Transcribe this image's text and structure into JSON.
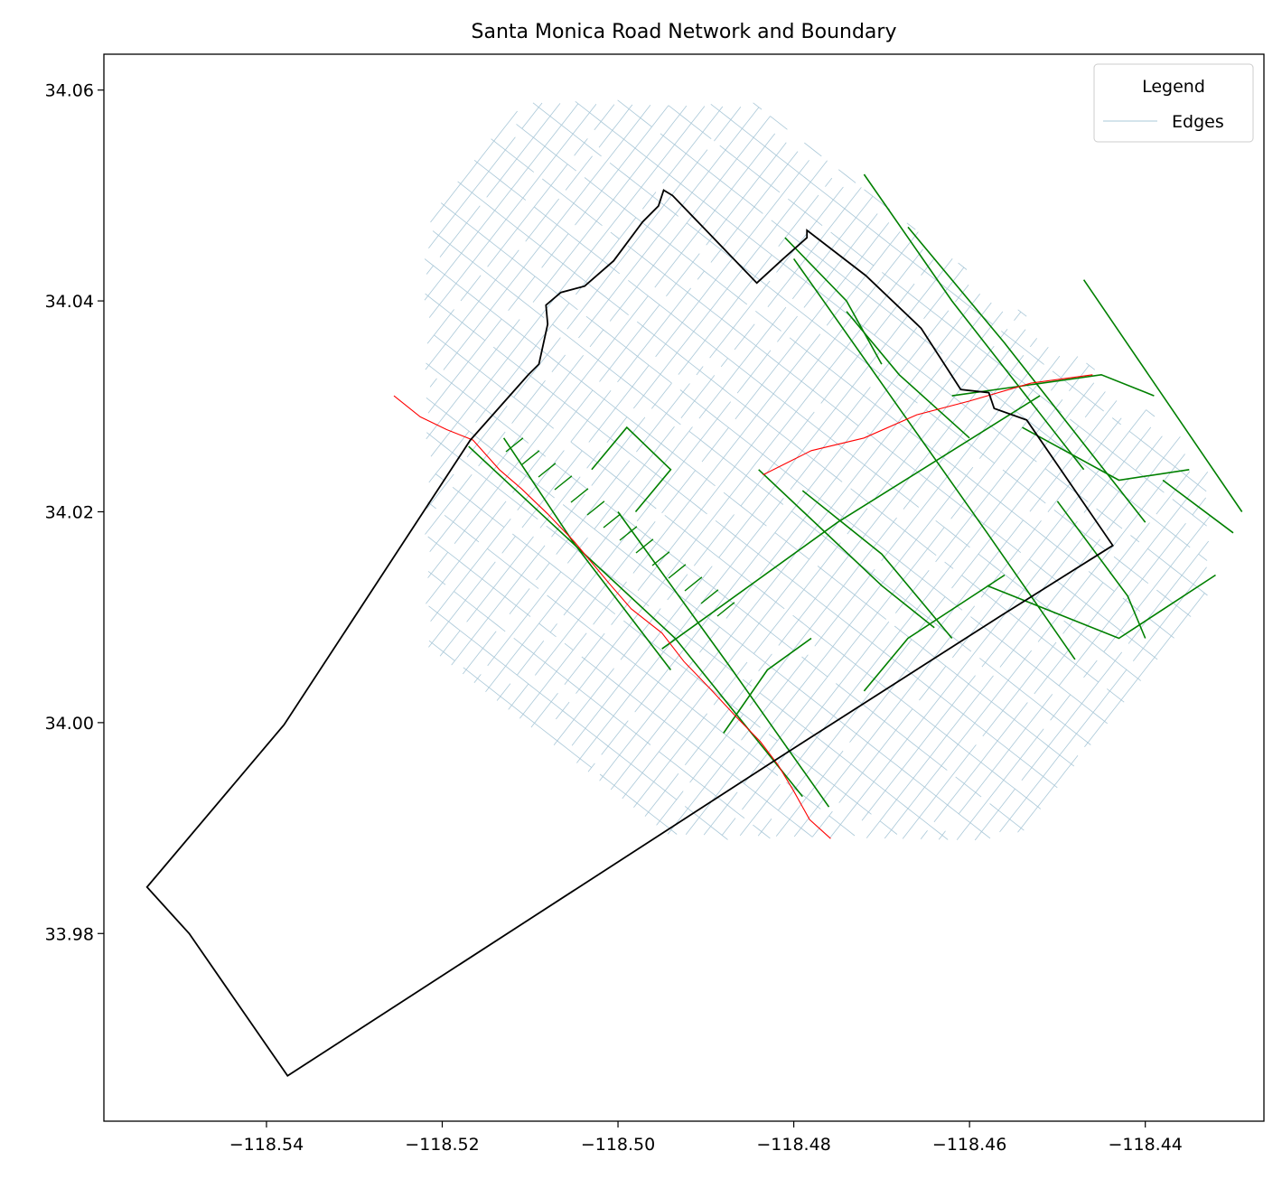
{
  "chart_data": {
    "type": "map",
    "title": "Santa Monica Road Network and Boundary",
    "xlabel": "",
    "ylabel": "",
    "xlim": [
      -118.5585,
      -118.4265
    ],
    "ylim": [
      33.9622,
      34.0634
    ],
    "x_ticks": [
      {
        "value": -118.54,
        "label": "−118.54"
      },
      {
        "value": -118.52,
        "label": "−118.52"
      },
      {
        "value": -118.5,
        "label": "−118.50"
      },
      {
        "value": -118.48,
        "label": "−118.48"
      },
      {
        "value": -118.46,
        "label": "−118.46"
      },
      {
        "value": -118.44,
        "label": "−118.44"
      }
    ],
    "y_ticks": [
      {
        "value": 33.98,
        "label": "33.98"
      },
      {
        "value": 34.0,
        "label": "34.00"
      },
      {
        "value": 34.02,
        "label": "34.02"
      },
      {
        "value": 34.04,
        "label": "34.04"
      },
      {
        "value": 34.06,
        "label": "34.06"
      }
    ],
    "grid": false,
    "legend": {
      "title": "Legend",
      "placement": "top-right",
      "entries": [
        {
          "label": "Edges",
          "color": "#aac8d8"
        }
      ]
    },
    "colors": {
      "edges": "#aac8d8",
      "bike_routes": "#008000",
      "coastal_path": "#ff0000",
      "boundary": "#000000"
    },
    "boundary": [
      [
        -118.5168,
        34.0268
      ],
      [
        -118.5102,
        34.033
      ],
      [
        -118.509,
        34.034
      ],
      [
        -118.508,
        34.0378
      ],
      [
        -118.5082,
        34.0396
      ],
      [
        -118.5065,
        34.0408
      ],
      [
        -118.5038,
        34.0414
      ],
      [
        -118.5005,
        34.0438
      ],
      [
        -118.4972,
        34.0475
      ],
      [
        -118.4954,
        34.049
      ],
      [
        -118.4948,
        34.0505
      ],
      [
        -118.4938,
        34.05
      ],
      [
        -118.4842,
        34.0417
      ],
      [
        -118.4812,
        34.044
      ],
      [
        -118.4785,
        34.046
      ],
      [
        -118.4785,
        34.0467
      ],
      [
        -118.4718,
        34.0424
      ],
      [
        -118.4655,
        34.0374
      ],
      [
        -118.461,
        34.0316
      ],
      [
        -118.4578,
        34.0313
      ],
      [
        -118.4572,
        34.0298
      ],
      [
        -118.4535,
        34.0287
      ],
      [
        -118.4437,
        34.0168
      ],
      [
        -118.4563,
        34.0102
      ],
      [
        -118.482,
        33.9965
      ],
      [
        -118.5376,
        33.9665
      ],
      [
        -118.5488,
        33.98
      ],
      [
        -118.5536,
        33.9844
      ],
      [
        -118.538,
        33.9998
      ],
      [
        -118.5168,
        34.0268
      ]
    ],
    "coastal_path": [
      [
        -118.5255,
        34.031
      ],
      [
        -118.5225,
        34.029
      ],
      [
        -118.5195,
        34.0278
      ],
      [
        -118.5165,
        34.0268
      ],
      [
        -118.5135,
        34.024
      ],
      [
        -118.511,
        34.0222
      ],
      [
        -118.508,
        34.0198
      ],
      [
        -118.505,
        34.0172
      ],
      [
        -118.501,
        34.0132
      ],
      [
        -118.4985,
        34.0108
      ],
      [
        -118.495,
        34.0085
      ],
      [
        -118.4925,
        34.0058
      ],
      [
        -118.4895,
        34.0032
      ],
      [
        -118.4865,
        34.0005
      ],
      [
        -118.4838,
        33.9982
      ],
      [
        -118.4818,
        33.996
      ],
      [
        -118.48,
        33.9935
      ],
      [
        -118.4782,
        33.9908
      ],
      [
        -118.4758,
        33.989
      ]
    ],
    "freeway_path": [
      [
        -118.4835,
        34.0235
      ],
      [
        -118.478,
        34.0258
      ],
      [
        -118.472,
        34.027
      ],
      [
        -118.466,
        34.0292
      ],
      [
        -118.46,
        34.0305
      ],
      [
        -118.453,
        34.0322
      ],
      [
        -118.446,
        34.033
      ]
    ]
  }
}
